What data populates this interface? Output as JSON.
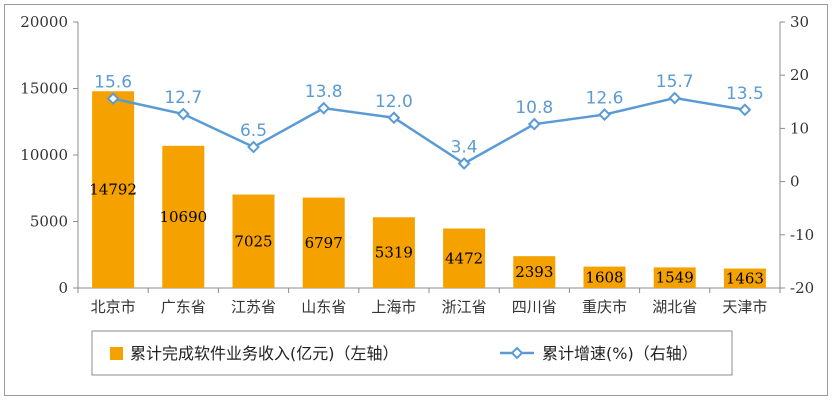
{
  "chart_data": {
    "type": "bar+line",
    "categories": [
      "北京市",
      "广东省",
      "江苏省",
      "山东省",
      "上海市",
      "浙江省",
      "四川省",
      "重庆市",
      "湖北省",
      "天津市"
    ],
    "series": [
      {
        "name": "累计完成软件业务收入(亿元)（左轴）",
        "type": "bar",
        "axis": "left",
        "values": [
          14792,
          10690,
          7025,
          6797,
          5319,
          4472,
          2393,
          1608,
          1549,
          1463
        ],
        "color": "#f5a200"
      },
      {
        "name": "累计增速(%)（右轴）",
        "type": "line",
        "axis": "right",
        "values": [
          15.6,
          12.7,
          6.5,
          13.8,
          12.0,
          3.4,
          10.8,
          12.6,
          15.7,
          13.5
        ],
        "labels": [
          "15.6",
          "12.7",
          "6.5",
          "13.8",
          "12.0",
          "3.4",
          "10.8",
          "12.6",
          "15.7",
          "13.5"
        ],
        "color": "#5b9bd5"
      }
    ],
    "y_left": {
      "min": 0,
      "max": 20000,
      "ticks": [
        0,
        5000,
        10000,
        15000,
        20000
      ]
    },
    "y_right": {
      "min": -20,
      "max": 30,
      "ticks": [
        -20,
        -10,
        0,
        10,
        20,
        30
      ]
    },
    "legend_position": "bottom",
    "grid": false
  }
}
